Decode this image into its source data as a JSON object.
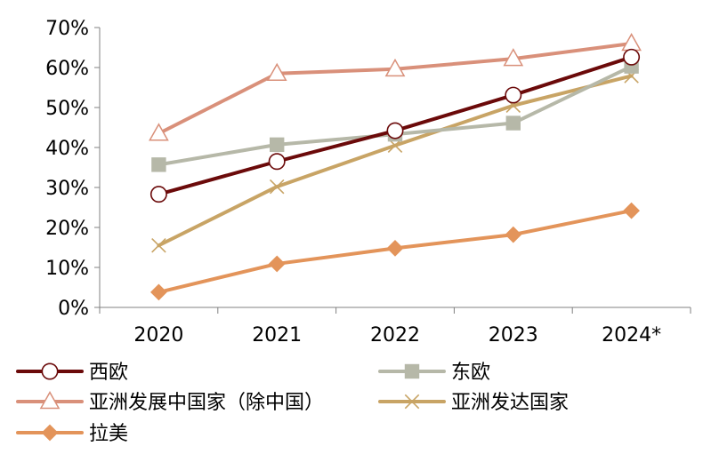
{
  "chart_data": {
    "type": "line",
    "title": "",
    "xlabel": "",
    "ylabel": "",
    "categories": [
      "2020",
      "2021",
      "2022",
      "2023",
      "2024*"
    ],
    "ylim": [
      0,
      70
    ],
    "yticks": [
      0,
      10,
      20,
      30,
      40,
      50,
      60,
      70
    ],
    "ytick_labels": [
      "0%",
      "10%",
      "20%",
      "30%",
      "40%",
      "50%",
      "60%",
      "70%"
    ],
    "grid": false,
    "legend_position": "bottom",
    "series": [
      {
        "name": "西欧",
        "values": [
          28.3,
          36.5,
          44.2,
          53.1,
          62.6
        ],
        "color": "#6B0A0A",
        "marker": "circle"
      },
      {
        "name": "东欧",
        "values": [
          35.7,
          40.7,
          43.3,
          46.1,
          60.3
        ],
        "color": "#B6B8A8",
        "marker": "square"
      },
      {
        "name": "亚洲发展中国家（除中国）",
        "values": [
          43.5,
          58.5,
          59.6,
          62.2,
          66.0
        ],
        "color": "#D9907A",
        "marker": "triangle"
      },
      {
        "name": "亚洲发达国家",
        "values": [
          15.5,
          30.2,
          40.5,
          50.5,
          57.9
        ],
        "color": "#C8A465",
        "marker": "x"
      },
      {
        "name": "拉美",
        "values": [
          3.8,
          10.9,
          14.8,
          18.2,
          24.2
        ],
        "color": "#E3945A",
        "marker": "diamond"
      }
    ]
  }
}
